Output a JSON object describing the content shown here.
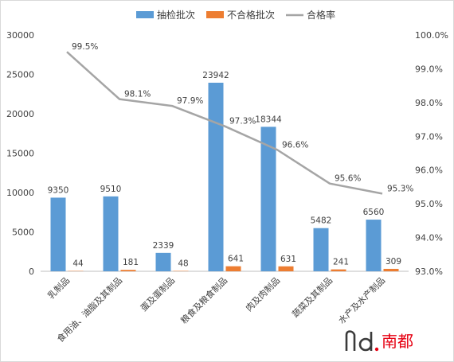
{
  "chart_data": {
    "type": "bar",
    "categories": [
      "乳制品",
      "食用油、油脂及其制品",
      "蛋及蛋制品",
      "粮食及粮食制品",
      "肉及肉制品",
      "蔬菜及其制品",
      "水产及水产制品"
    ],
    "series": [
      {
        "name": "抽检批次",
        "type": "bar",
        "axis": "left",
        "color": "#5b9bd5",
        "values": [
          9350,
          9510,
          2339,
          23942,
          18344,
          5482,
          6560
        ],
        "labels": [
          "9350",
          "9510",
          "2339",
          "23942",
          "18344",
          "5482",
          "6560"
        ]
      },
      {
        "name": "不合格批次",
        "type": "bar",
        "axis": "left",
        "color": "#ed7d31",
        "values": [
          44,
          181,
          48,
          641,
          631,
          241,
          309
        ],
        "labels": [
          "44",
          "181",
          "48",
          "641",
          "631",
          "241",
          "309"
        ]
      },
      {
        "name": "合格率",
        "type": "line",
        "axis": "right",
        "color": "#a5a5a5",
        "values": [
          99.5,
          98.1,
          97.9,
          97.3,
          96.6,
          95.6,
          95.3
        ],
        "labels": [
          "99.5%",
          "98.1%",
          "97.9%",
          "97.3%",
          "96.6%",
          "95.6%",
          "95.3%"
        ]
      }
    ],
    "y_left": {
      "min": 0,
      "max": 30000,
      "step": 5000,
      "ticks": [
        "0",
        "5000",
        "10000",
        "15000",
        "20000",
        "25000",
        "30000"
      ]
    },
    "y_right": {
      "min": 93,
      "max": 100,
      "step": 1,
      "ticks": [
        "93.0%",
        "94.0%",
        "95.0%",
        "96.0%",
        "97.0%",
        "98.0%",
        "99.0%",
        "100.0%"
      ]
    },
    "legend_position": "top",
    "grid": false
  },
  "watermark": {
    "text": "南都"
  }
}
